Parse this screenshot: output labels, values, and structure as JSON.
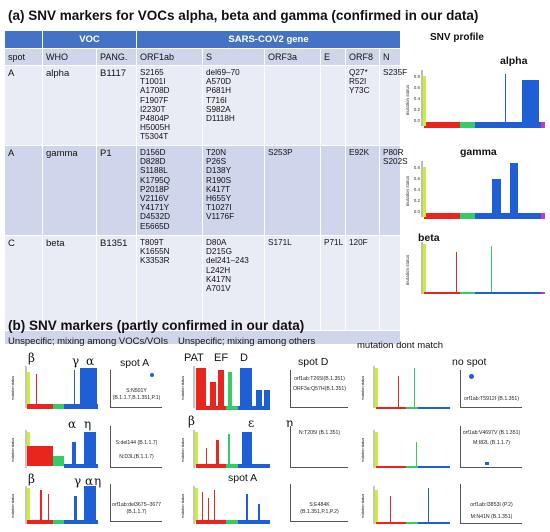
{
  "title_a": "(a) SNV markers for VOCs alpha, beta and gamma (confirmed in our data)",
  "table": {
    "header1": {
      "voc": "VOC",
      "gene": "SARS-COV2 gene"
    },
    "header2": [
      "spot",
      "WHO",
      "PANG.",
      "ORF1ab",
      "S",
      "ORF3a",
      "E",
      "ORF8",
      "N"
    ],
    "rows": [
      {
        "spot": "A",
        "who": "alpha",
        "pango": "B1117",
        "orf1ab": [
          "S2165",
          "T1001I",
          "A1708D",
          "F1907F",
          "I2230T",
          "P4804P",
          "H5005H",
          "T5304T"
        ],
        "s": [
          "del69–70",
          "A570D",
          "P681H",
          "T716I",
          "S982A",
          "D1118H"
        ],
        "orf3a": [],
        "e": [],
        "orf8": [
          "Q27*",
          "R52I",
          "Y73C"
        ],
        "n": [
          "S235F"
        ]
      },
      {
        "spot": "A",
        "who": "gamma",
        "pango": "P1",
        "orf1ab": [
          "D156D",
          "D828D",
          "S1188L",
          "K1795Q",
          "P2018P",
          "V2116V",
          "Y4171Y",
          "D4532D",
          "E5665D"
        ],
        "s": [
          "T20N",
          "P26S",
          "D138Y",
          "R190S",
          "K417T",
          "H655Y",
          "T1027I",
          "V1176F"
        ],
        "orf3a": [
          "S253P"
        ],
        "e": [],
        "orf8": [
          "E92K"
        ],
        "n": [
          "P80R",
          "S202S"
        ]
      },
      {
        "spot": "C",
        "who": "beta",
        "pango": "B1351",
        "orf1ab": [
          "T809T",
          "K1655N",
          "K3353R"
        ],
        "s": [
          "D80A",
          "D215G",
          "del241–243",
          "L242H",
          "K417N",
          "A701V"
        ],
        "orf3a": [
          "S171L"
        ],
        "e": [
          "P71L"
        ],
        "orf8": [
          "120F"
        ],
        "n": []
      }
    ]
  },
  "profile": {
    "title": "SNV profile",
    "ylabel": "mutation status",
    "yticks": [
      "0.8",
      "0.6",
      "0.4",
      "0.2",
      "0.0"
    ],
    "labels": [
      "alpha",
      "gamma",
      "beta"
    ]
  },
  "title_b": "(b) SNV markers (partly confirmed in our data)",
  "group_captions": [
    "Unspecific; mixing among VOCs/VOIs",
    "Unspecific; mixing among others",
    "mutation dont match"
  ],
  "greek": {
    "l1": [
      "β",
      "γ",
      "α"
    ],
    "l2": [
      "α",
      "η"
    ],
    "l3": [
      "β",
      "γ",
      "α",
      "η"
    ],
    "m1": [
      "PAT",
      "EF",
      "D"
    ],
    "m2": [
      "β",
      "ε",
      "η"
    ]
  },
  "spots": [
    "spot A",
    "spot D",
    "no spot",
    "spot A"
  ],
  "zoom_labels": {
    "l1": [
      "S:N501Y",
      "(B.1.1.7,B.1.351,P.1)"
    ],
    "l2": [
      "S:del144  (B.1.1.7)",
      "N:D3L(B.1.1.7)"
    ],
    "l3": [
      "orf1ab:del3675–3677",
      "(B.1.1.7)"
    ],
    "m1": [
      "orf1ab:T265I(B.1.351)",
      "ORF3a:Q57H(B.1.351)"
    ],
    "m2": [
      "N:T205I (B.1.351)"
    ],
    "m3": [
      "S:E484K",
      "(B.1.351,P.1,P.2)"
    ],
    "r1": [
      "orf1ab:T5912I (B.1.351)"
    ],
    "r2": [
      "orf1ab:V4697V (B.1.351)",
      "M:I82L (B.1.1.7)"
    ],
    "r3": [
      "orf1ab:I3853I (P.2)",
      "M:N41N (B.1.351)"
    ]
  }
}
